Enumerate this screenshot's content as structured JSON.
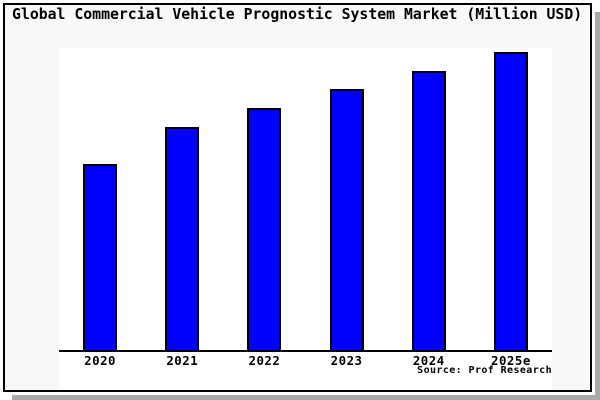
{
  "colors": {
    "bar_fill": "#0000ff",
    "bar_border": "#000000",
    "panel_background": "#f8f8f8",
    "plot_background": "#ffffff",
    "axis": "#000000",
    "shadow": "#aaaaaa",
    "text": "#000000"
  },
  "chart_data": {
    "type": "bar",
    "title": "Global Commercial Vehicle Prognostic System Market (Million USD)",
    "categories": [
      "2020",
      "2021",
      "2022",
      "2023",
      "2024",
      "2025e"
    ],
    "values_relative_pct_of_max": [
      62.7,
      75.0,
      81.4,
      87.7,
      93.7,
      100
    ],
    "value_labels_shown": false,
    "y_axis_visible": false,
    "grid": false,
    "legend": false,
    "bar_color": "#0000ff",
    "source_note": "Source: Prof Research"
  }
}
